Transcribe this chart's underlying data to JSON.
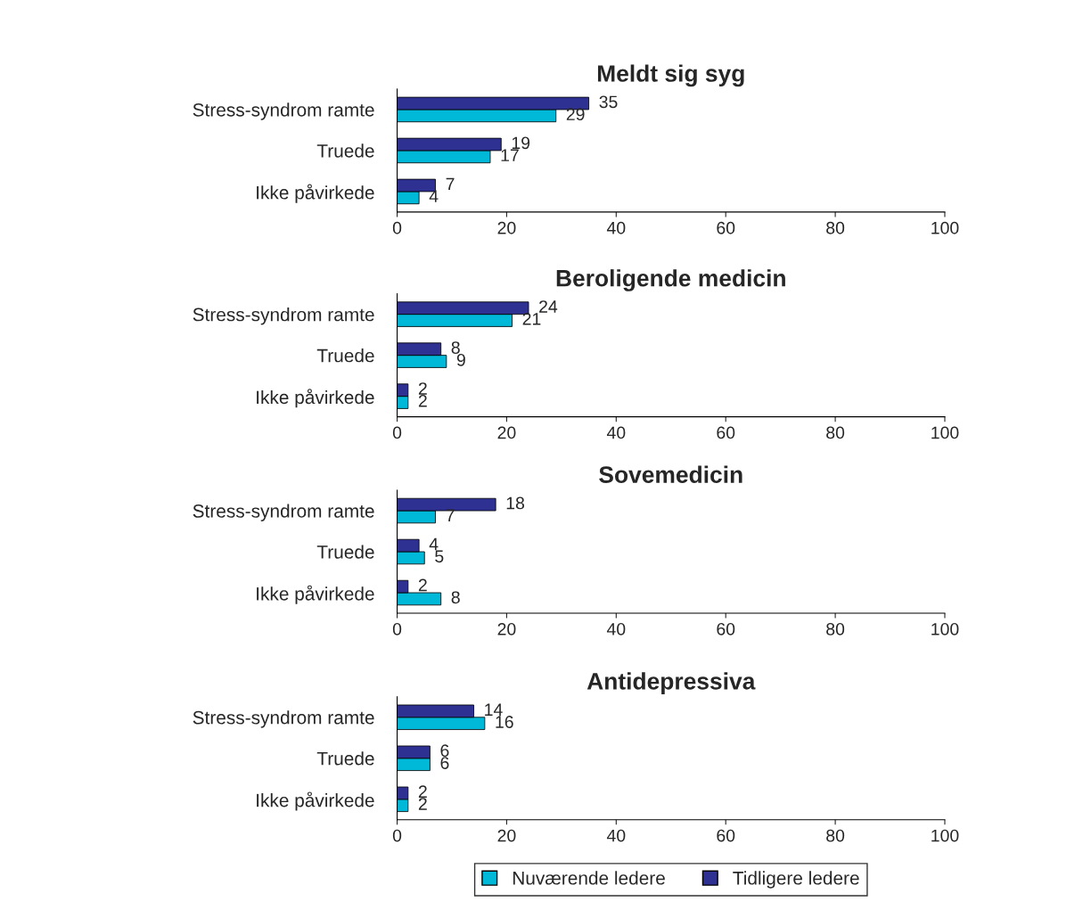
{
  "chart_data": [
    {
      "type": "bar",
      "orientation": "horizontal",
      "title": "Meldt sig syg",
      "categories": [
        "Stress-syndrom ramte",
        "Truede",
        "Ikke påvirkede"
      ],
      "series": [
        {
          "color": "#00b8d8",
          "values": [
            29,
            17,
            4
          ]
        },
        {
          "color": "#2e3192",
          "values": [
            35,
            19,
            7
          ]
        }
      ],
      "xlim": [
        0,
        100
      ],
      "xticks": [
        0,
        20,
        40,
        60,
        80,
        100
      ],
      "data_labels": true,
      "grid": false,
      "legend": false
    },
    {
      "type": "bar",
      "orientation": "horizontal",
      "title": "Beroligende medicin",
      "categories": [
        "Stress-syndrom ramte",
        "Truede",
        "Ikke påvirkede"
      ],
      "series": [
        {
          "color": "#00b8d8",
          "values": [
            21,
            9,
            2
          ]
        },
        {
          "color": "#2e3192",
          "values": [
            24,
            8,
            2
          ]
        }
      ],
      "xlim": [
        0,
        100
      ],
      "xticks": [
        0,
        20,
        40,
        60,
        80,
        100
      ],
      "data_labels": true,
      "grid": false,
      "legend": false
    },
    {
      "type": "bar",
      "orientation": "horizontal",
      "title": "Sovemedicin",
      "categories": [
        "Stress-syndrom ramte",
        "Truede",
        "Ikke påvirkede"
      ],
      "series": [
        {
          "color": "#00b8d8",
          "values": [
            7,
            5,
            8
          ]
        },
        {
          "color": "#2e3192",
          "values": [
            18,
            4,
            2
          ]
        }
      ],
      "xlim": [
        0,
        100
      ],
      "xticks": [
        0,
        20,
        40,
        60,
        80,
        100
      ],
      "data_labels": true,
      "grid": false,
      "legend": false
    },
    {
      "type": "bar",
      "orientation": "horizontal",
      "title": "Antidepressiva",
      "categories": [
        "Stress-syndrom ramte",
        "Truede",
        "Ikke påvirkede"
      ],
      "series": [
        {
          "name": "Nuværende ledere",
          "color": "#00b8d8",
          "values": [
            16,
            6,
            2
          ]
        },
        {
          "name": "Tidligere ledere",
          "color": "#2e3192",
          "values": [
            14,
            6,
            2
          ]
        }
      ],
      "xlim": [
        0,
        100
      ],
      "xticks": [
        0,
        20,
        40,
        60,
        80,
        100
      ],
      "data_labels": true,
      "grid": false,
      "legend": "bottom"
    }
  ]
}
